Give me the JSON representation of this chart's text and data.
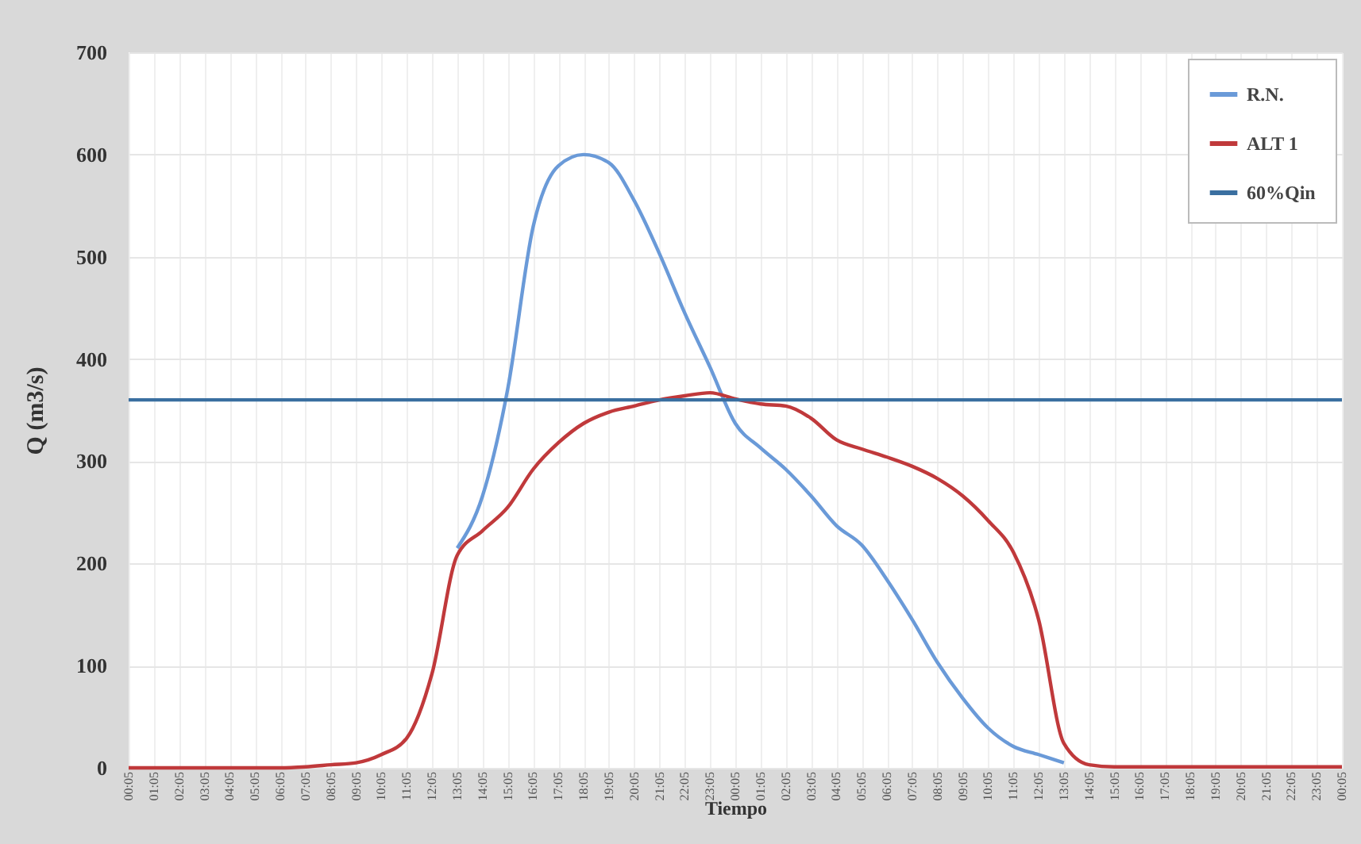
{
  "chart_data": {
    "type": "line",
    "xlabel": "Tiempo",
    "ylabel": "Q (m3/s)",
    "categories": [
      "00:05",
      "01:05",
      "02:05",
      "03:05",
      "04:05",
      "05:05",
      "06:05",
      "07:05",
      "08:05",
      "09:05",
      "10:05",
      "11:05",
      "12:05",
      "13:05",
      "14:05",
      "15:05",
      "16:05",
      "17:05",
      "18:05",
      "19:05",
      "20:05",
      "21:05",
      "22:05",
      "23:05",
      "00:05",
      "01:05",
      "02:05",
      "03:05",
      "04:05",
      "05:05",
      "06:05",
      "07:05",
      "08:05",
      "09:05",
      "10:05",
      "11:05",
      "12:05",
      "13:05",
      "14:05",
      "15:05",
      "16:05",
      "17:05",
      "18:05",
      "19:05",
      "20:05",
      "21:05",
      "22:05",
      "23:05",
      "00:05"
    ],
    "series": [
      {
        "name": "R.N.",
        "color": "#6a9ad8",
        "values": [
          null,
          null,
          null,
          null,
          null,
          null,
          null,
          null,
          null,
          null,
          null,
          null,
          null,
          215,
          266,
          371,
          529,
          589,
          600,
          592,
          555,
          503,
          445,
          392,
          337,
          313,
          292,
          266,
          237,
          218,
          184,
          145,
          103,
          68,
          39,
          21,
          13,
          5,
          null,
          null,
          null,
          null,
          null,
          null,
          null,
          null,
          null,
          null,
          null
        ]
      },
      {
        "name": "ALT 1",
        "color": "#c0393b",
        "values": [
          0,
          0,
          0,
          0,
          0,
          0,
          0,
          1,
          3,
          5,
          13,
          29,
          92,
          208,
          232,
          255,
          292,
          318,
          337,
          348,
          354,
          360,
          364,
          367,
          361,
          356,
          354,
          342,
          321,
          312,
          304,
          295,
          283,
          266,
          242,
          211,
          145,
          24,
          3,
          1,
          1,
          1,
          1,
          1,
          1,
          1,
          1,
          1,
          1
        ]
      },
      {
        "name": "60%Qin",
        "color": "#3a6fa0",
        "values": [
          360,
          360,
          360,
          360,
          360,
          360,
          360,
          360,
          360,
          360,
          360,
          360,
          360,
          360,
          360,
          360,
          360,
          360,
          360,
          360,
          360,
          360,
          360,
          360,
          360,
          360,
          360,
          360,
          360,
          360,
          360,
          360,
          360,
          360,
          360,
          360,
          360,
          360,
          360,
          360,
          360,
          360,
          360,
          360,
          360,
          360,
          360,
          360,
          360
        ]
      }
    ],
    "ylim": [
      0,
      700
    ],
    "yticks": [
      0,
      100,
      200,
      300,
      400,
      500,
      600,
      700
    ],
    "grid": true,
    "legend": "top right"
  }
}
